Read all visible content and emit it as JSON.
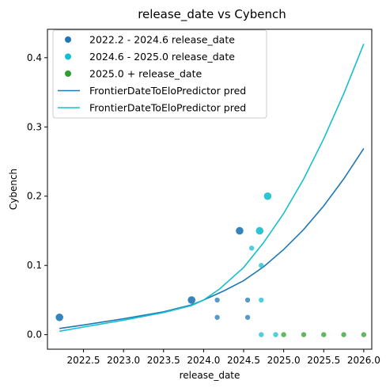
{
  "chart_data": {
    "type": "scatter",
    "title": "release_date vs Cybench",
    "xlabel": "release_date",
    "ylabel": "Cybench",
    "xlim": [
      2022.05,
      2026.1
    ],
    "ylim": [
      -0.021,
      0.441
    ],
    "xticks": [
      2022.5,
      2023.0,
      2023.5,
      2024.0,
      2024.5,
      2025.0,
      2025.5,
      2026.0
    ],
    "xtick_labels": [
      "2022.5",
      "2023.0",
      "2023.5",
      "2024.0",
      "2024.5",
      "2025.0",
      "2025.5",
      "2026.0"
    ],
    "yticks": [
      0.0,
      0.1,
      0.2,
      0.3,
      0.4
    ],
    "ytick_labels": [
      "0.0",
      "0.1",
      "0.2",
      "0.3",
      "0.4"
    ],
    "grid": false,
    "legend_position": "top-left",
    "scatter_series": [
      {
        "name": "2022.2 - 2024.6 release_date",
        "color": "#1f77b4",
        "points": [
          {
            "x": 2022.2,
            "y": 0.025,
            "size": "large"
          },
          {
            "x": 2023.85,
            "y": 0.05,
            "size": "large"
          },
          {
            "x": 2024.45,
            "y": 0.15,
            "size": "large"
          },
          {
            "x": 2024.17,
            "y": 0.05,
            "size": "small"
          },
          {
            "x": 2024.17,
            "y": 0.025,
            "size": "small"
          },
          {
            "x": 2024.55,
            "y": 0.05,
            "size": "small"
          },
          {
            "x": 2024.55,
            "y": 0.025,
            "size": "small"
          }
        ]
      },
      {
        "name": "2024.6 - 2025.0 release_date",
        "color": "#17becf",
        "points": [
          {
            "x": 2024.8,
            "y": 0.2,
            "size": "large"
          },
          {
            "x": 2024.7,
            "y": 0.15,
            "size": "large"
          },
          {
            "x": 2024.6,
            "y": 0.125,
            "size": "small"
          },
          {
            "x": 2024.72,
            "y": 0.1,
            "size": "small"
          },
          {
            "x": 2024.72,
            "y": 0.05,
            "size": "small"
          },
          {
            "x": 2024.72,
            "y": 0.0,
            "size": "small"
          },
          {
            "x": 2024.9,
            "y": 0.0,
            "size": "small"
          }
        ]
      },
      {
        "name": "2025.0 + release_date",
        "color": "#2ca02c",
        "points": [
          {
            "x": 2025.0,
            "y": 0.0,
            "size": "small"
          },
          {
            "x": 2025.25,
            "y": 0.0,
            "size": "small"
          },
          {
            "x": 2025.5,
            "y": 0.0,
            "size": "small"
          },
          {
            "x": 2025.75,
            "y": 0.0,
            "size": "small"
          },
          {
            "x": 2026.0,
            "y": 0.0,
            "size": "small"
          }
        ]
      }
    ],
    "line_series": [
      {
        "name": "FrontierDateToEloPredictor pred",
        "color": "#1f77b4",
        "points": [
          {
            "x": 2022.2,
            "y": 0.009
          },
          {
            "x": 2022.5,
            "y": 0.014
          },
          {
            "x": 2023.0,
            "y": 0.023
          },
          {
            "x": 2023.5,
            "y": 0.033
          },
          {
            "x": 2023.85,
            "y": 0.043
          },
          {
            "x": 2024.0,
            "y": 0.05
          },
          {
            "x": 2024.25,
            "y": 0.063
          },
          {
            "x": 2024.5,
            "y": 0.078
          },
          {
            "x": 2024.75,
            "y": 0.098
          },
          {
            "x": 2025.0,
            "y": 0.123
          },
          {
            "x": 2025.25,
            "y": 0.152
          },
          {
            "x": 2025.5,
            "y": 0.186
          },
          {
            "x": 2025.75,
            "y": 0.225
          },
          {
            "x": 2026.0,
            "y": 0.269
          }
        ]
      },
      {
        "name": "FrontierDateToEloPredictor pred",
        "color": "#17becf",
        "points": [
          {
            "x": 2022.2,
            "y": 0.005
          },
          {
            "x": 2022.5,
            "y": 0.011
          },
          {
            "x": 2023.0,
            "y": 0.021
          },
          {
            "x": 2023.5,
            "y": 0.032
          },
          {
            "x": 2023.85,
            "y": 0.042
          },
          {
            "x": 2024.0,
            "y": 0.05
          },
          {
            "x": 2024.2,
            "y": 0.066
          },
          {
            "x": 2024.5,
            "y": 0.097
          },
          {
            "x": 2024.75,
            "y": 0.133
          },
          {
            "x": 2025.0,
            "y": 0.175
          },
          {
            "x": 2025.25,
            "y": 0.225
          },
          {
            "x": 2025.5,
            "y": 0.283
          },
          {
            "x": 2025.75,
            "y": 0.348
          },
          {
            "x": 2026.0,
            "y": 0.42
          }
        ]
      }
    ]
  }
}
